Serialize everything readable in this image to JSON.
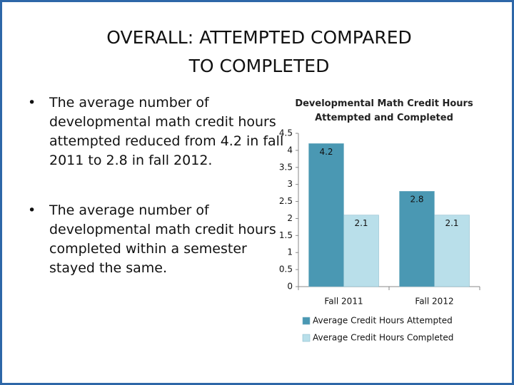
{
  "slide": {
    "title": "OVERALL: ATTEMPTED COMPARED TO COMPLETED",
    "bullets": [
      "The average number of developmental math credit hours attempted reduced from 4.2 in fall 2011 to 2.8 in fall 2012.",
      "The average number of developmental math credit hours completed within a semester stayed the same."
    ]
  },
  "chart_data": {
    "type": "bar",
    "title": "Developmental Math Credit Hours Attempted and Completed",
    "categories": [
      "Fall 2011",
      "Fall 2012"
    ],
    "series": [
      {
        "name": "Average Credit Hours Attempted",
        "color": "#4a98b3",
        "values": [
          4.2,
          2.8
        ]
      },
      {
        "name": "Average Credit Hours Completed",
        "color": "#b9dfea",
        "values": [
          2.1,
          2.1
        ]
      }
    ],
    "ylim": [
      0,
      4.5
    ],
    "yticks": [
      0,
      0.5,
      1,
      1.5,
      2,
      2.5,
      3,
      3.5,
      4,
      4.5
    ],
    "grid": false,
    "legend": "bottom"
  }
}
